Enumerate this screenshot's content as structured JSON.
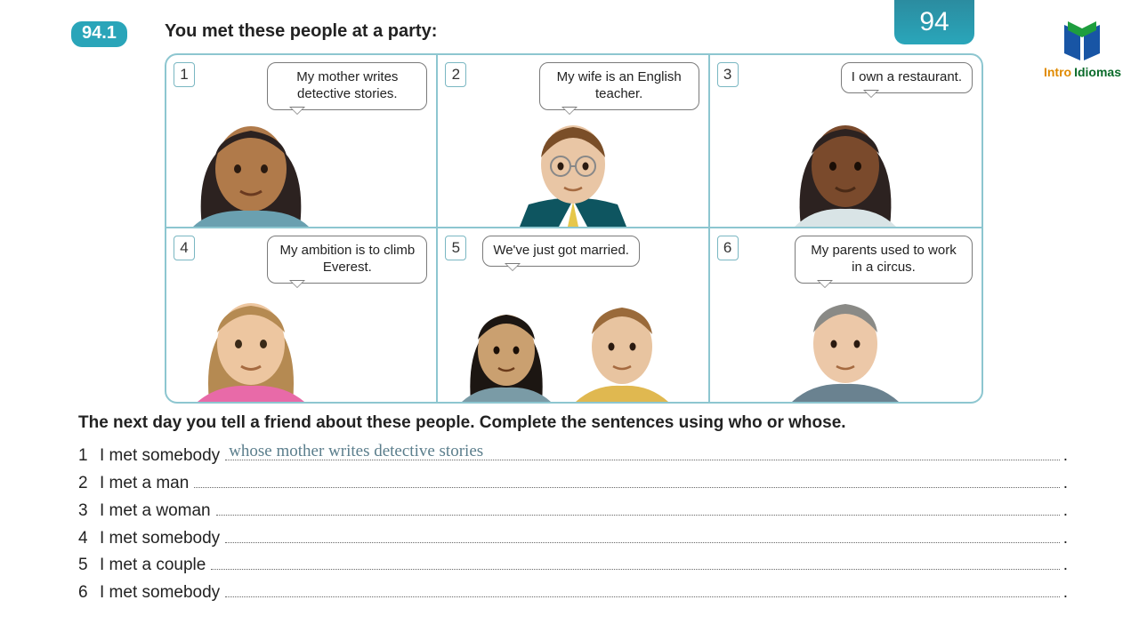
{
  "page_number": "94",
  "exercise_number": "94.1",
  "instruction": "You met these people at a party:",
  "logo": {
    "word1": "Intro",
    "word2": "Idiomas",
    "color1": "#e08a00",
    "color2": "#0a6b2a"
  },
  "colors": {
    "teal": "#2aa5b9",
    "panel_border": "#8dc6d0",
    "answer": "#5b7e8c"
  },
  "panels": [
    {
      "n": "1",
      "speech": "My mother writes detective stories.",
      "align": "left"
    },
    {
      "n": "2",
      "speech": "My wife is an English teacher.",
      "align": "center"
    },
    {
      "n": "3",
      "speech": "I own a restaurant.",
      "align": "center"
    },
    {
      "n": "4",
      "speech": "My ambition is to climb Everest.",
      "align": "left"
    },
    {
      "n": "5",
      "speech": "We've just got married.",
      "align": "center",
      "duo": true
    },
    {
      "n": "6",
      "speech": "My parents used to work in a circus.",
      "align": "center"
    }
  ],
  "sub_instruction_pre": "The next day you tell a friend about these people.  Complete the sentences using ",
  "sub_instruction_b1": "who",
  "sub_instruction_mid": " or ",
  "sub_instruction_b2": "whose",
  "sub_instruction_post": ".",
  "lines": [
    {
      "n": "1",
      "stem": "I met somebody",
      "answer": "whose mother writes detective stories"
    },
    {
      "n": "2",
      "stem": "I met a man",
      "answer": ""
    },
    {
      "n": "3",
      "stem": "I met a woman",
      "answer": ""
    },
    {
      "n": "4",
      "stem": "I met somebody",
      "answer": ""
    },
    {
      "n": "5",
      "stem": "I met a couple",
      "answer": ""
    },
    {
      "n": "6",
      "stem": "I met somebody",
      "answer": ""
    }
  ],
  "avatars": {
    "p1": {
      "skin": "#b07a4a",
      "hair": "#2c2220",
      "top": "#6aa0b0"
    },
    "p2": {
      "skin": "#e9c6a5",
      "hair": "#7a4e28",
      "glasses": true,
      "suit": "#0e5560",
      "tie": "#e6c74b",
      "shirt": "#fff"
    },
    "p3": {
      "skin": "#7a4a2c",
      "hair": "#2c2220",
      "top": "#d9e4e6"
    },
    "p4": {
      "skin": "#edc6a0",
      "hair": "#b58a52",
      "top": "#e86aa8"
    },
    "p5a": {
      "skin": "#caa070",
      "hair": "#1c1612",
      "top": "#7a9ba6"
    },
    "p5b": {
      "skin": "#e8c4a0",
      "hair": "#9a6a3a",
      "top": "#e0b850"
    },
    "p6": {
      "skin": "#ecc8a8",
      "hair": "#8a8a86",
      "top": "#6a8290"
    }
  }
}
